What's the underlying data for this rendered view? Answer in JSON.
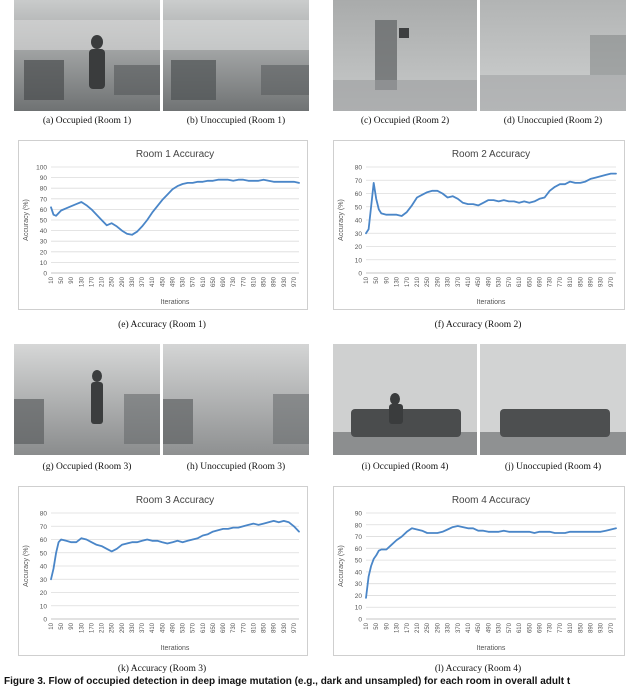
{
  "captions": {
    "a": "(a)  Occupied (Room 1)",
    "b": "(b)  Unoccupied (Room 1)",
    "c": "(c)  Occupied (Room 2)",
    "d": "(d)  Unoccupied (Room 2)",
    "e": "(e)  Accuracy (Room 1)",
    "f": "(f)  Accuracy (Room 2)",
    "g": "(g)  Occupied (Room 3)",
    "h": "(h)  Unoccupied (Room 3)",
    "i": "(i)  Occupied (Room 4)",
    "j": "(j)  Unoccupied (Room 4)",
    "k": "(k)  Accuracy (Room 3)",
    "l": "(l)  Accuracy (Room 4)"
  },
  "footer_text": "Figure 3. Flow of occupied detection in deep image mutation (e.g., dark and unsampled) for each room in overall adult t",
  "chart_data": [
    {
      "type": "line",
      "title": "Room 1 Accuracy",
      "xlabel": "Iterations",
      "ylabel": "Accuracy (%)",
      "ylim": [
        0,
        100
      ],
      "yticks": [
        "0",
        "10",
        "20",
        "30",
        "40",
        "50",
        "60",
        "70",
        "80",
        "90",
        "100"
      ],
      "xticks": [
        "10",
        "50",
        "90",
        "130",
        "170",
        "210",
        "250",
        "290",
        "330",
        "370",
        "410",
        "450",
        "490",
        "530",
        "570",
        "610",
        "650",
        "690",
        "730",
        "770",
        "810",
        "850",
        "890",
        "930",
        "970"
      ],
      "grid": true,
      "color": "#4a86c8",
      "x": [
        10,
        20,
        30,
        50,
        70,
        90,
        110,
        130,
        150,
        170,
        190,
        210,
        230,
        250,
        270,
        290,
        310,
        330,
        350,
        370,
        390,
        410,
        430,
        450,
        470,
        490,
        510,
        530,
        550,
        570,
        590,
        610,
        630,
        650,
        670,
        690,
        710,
        730,
        750,
        770,
        790,
        810,
        830,
        850,
        870,
        890,
        910,
        930,
        950,
        970,
        990
      ],
      "values": [
        62,
        55,
        54,
        59,
        61,
        63,
        65,
        67,
        64,
        60,
        55,
        50,
        45,
        47,
        44,
        40,
        37,
        36,
        39,
        44,
        50,
        57,
        63,
        69,
        74,
        79,
        82,
        84,
        85,
        85,
        86,
        86,
        87,
        87,
        88,
        88,
        88,
        87,
        88,
        88,
        87,
        87,
        87,
        88,
        87,
        86,
        86,
        86,
        86,
        86,
        85
      ]
    },
    {
      "type": "line",
      "title": "Room 2 Accuracy",
      "xlabel": "Iterations",
      "ylabel": "Accuracy (%)",
      "ylim": [
        0,
        80
      ],
      "yticks": [
        "0",
        "10",
        "20",
        "30",
        "40",
        "50",
        "60",
        "70",
        "80"
      ],
      "xticks": [
        "10",
        "50",
        "90",
        "130",
        "170",
        "210",
        "250",
        "290",
        "330",
        "370",
        "410",
        "450",
        "490",
        "530",
        "570",
        "610",
        "650",
        "690",
        "730",
        "770",
        "810",
        "850",
        "890",
        "930",
        "970"
      ],
      "grid": true,
      "color": "#4a86c8",
      "x": [
        10,
        20,
        30,
        40,
        50,
        60,
        70,
        90,
        110,
        130,
        150,
        170,
        190,
        210,
        230,
        250,
        270,
        290,
        310,
        330,
        350,
        370,
        390,
        410,
        430,
        450,
        470,
        490,
        510,
        530,
        550,
        570,
        590,
        610,
        630,
        650,
        670,
        690,
        710,
        730,
        750,
        770,
        790,
        810,
        830,
        850,
        870,
        890,
        910,
        930,
        950,
        970,
        990
      ],
      "values": [
        30,
        33,
        50,
        68,
        56,
        48,
        45,
        44,
        44,
        44,
        43,
        46,
        51,
        57,
        59,
        61,
        62,
        62,
        60,
        57,
        58,
        56,
        53,
        52,
        52,
        51,
        53,
        55,
        55,
        54,
        55,
        54,
        54,
        53,
        54,
        53,
        54,
        56,
        57,
        62,
        65,
        67,
        67,
        69,
        68,
        68,
        69,
        71,
        72,
        73,
        74,
        75,
        75
      ]
    },
    {
      "type": "line",
      "title": "Room 3 Accuracy",
      "xlabel": "Iterations",
      "ylabel": "Accuracy (%)",
      "ylim": [
        0,
        80
      ],
      "yticks": [
        "0",
        "10",
        "20",
        "30",
        "40",
        "50",
        "60",
        "70",
        "80"
      ],
      "xticks": [
        "10",
        "50",
        "90",
        "130",
        "170",
        "210",
        "250",
        "290",
        "330",
        "370",
        "410",
        "450",
        "490",
        "530",
        "570",
        "610",
        "650",
        "690",
        "730",
        "770",
        "810",
        "850",
        "890",
        "930",
        "970"
      ],
      "grid": true,
      "color": "#4a86c8",
      "x": [
        10,
        20,
        30,
        40,
        50,
        70,
        90,
        110,
        130,
        150,
        170,
        190,
        210,
        230,
        250,
        270,
        290,
        310,
        330,
        350,
        370,
        390,
        410,
        430,
        450,
        470,
        490,
        510,
        530,
        550,
        570,
        590,
        610,
        630,
        650,
        670,
        690,
        710,
        730,
        750,
        770,
        790,
        810,
        830,
        850,
        870,
        890,
        910,
        930,
        950,
        970,
        990
      ],
      "values": [
        30,
        38,
        50,
        58,
        60,
        59,
        58,
        58,
        61,
        60,
        58,
        56,
        55,
        53,
        51,
        53,
        56,
        57,
        58,
        58,
        59,
        60,
        59,
        59,
        58,
        57,
        58,
        59,
        58,
        59,
        60,
        61,
        63,
        64,
        66,
        67,
        68,
        68,
        69,
        69,
        70,
        71,
        72,
        71,
        72,
        73,
        74,
        73,
        74,
        73,
        70,
        66
      ]
    },
    {
      "type": "line",
      "title": "Room 4 Accuracy",
      "xlabel": "Iterations",
      "ylabel": "Accuracy (%)",
      "ylim": [
        0,
        90
      ],
      "yticks": [
        "0",
        "10",
        "20",
        "30",
        "40",
        "50",
        "60",
        "70",
        "80",
        "90"
      ],
      "xticks": [
        "10",
        "50",
        "90",
        "130",
        "170",
        "210",
        "250",
        "290",
        "330",
        "370",
        "410",
        "450",
        "490",
        "530",
        "570",
        "610",
        "650",
        "690",
        "730",
        "770",
        "810",
        "850",
        "890",
        "930",
        "970"
      ],
      "grid": true,
      "color": "#4a86c8",
      "x": [
        10,
        20,
        30,
        40,
        50,
        60,
        70,
        90,
        110,
        130,
        150,
        170,
        190,
        210,
        230,
        250,
        270,
        290,
        310,
        330,
        350,
        370,
        390,
        410,
        430,
        450,
        470,
        490,
        510,
        530,
        550,
        570,
        590,
        610,
        630,
        650,
        670,
        690,
        710,
        730,
        750,
        770,
        790,
        810,
        830,
        850,
        870,
        890,
        910,
        930,
        950,
        970,
        990
      ],
      "values": [
        18,
        36,
        45,
        51,
        54,
        58,
        59,
        59,
        63,
        67,
        70,
        74,
        77,
        76,
        75,
        73,
        73,
        73,
        74,
        76,
        78,
        79,
        78,
        77,
        77,
        75,
        75,
        74,
        74,
        74,
        75,
        74,
        74,
        74,
        74,
        74,
        73,
        74,
        74,
        74,
        73,
        73,
        73,
        74,
        74,
        74,
        74,
        74,
        74,
        74,
        75,
        76,
        77
      ]
    }
  ]
}
